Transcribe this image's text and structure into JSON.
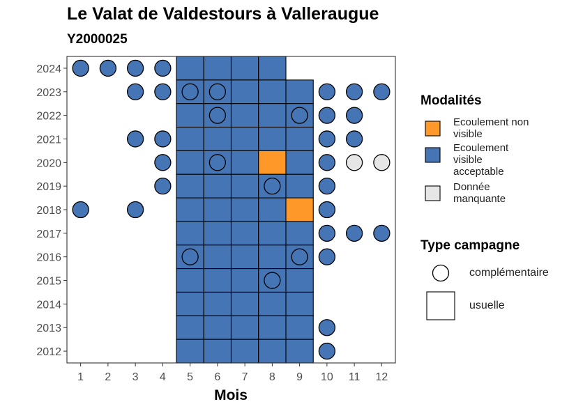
{
  "chart_data": {
    "type": "heatmap",
    "title": "Le Valat de Valdestours à Valleraugue",
    "subtitle": "Y2000025",
    "xlabel": "Mois",
    "ylabel": "",
    "x_ticks": [
      1,
      2,
      3,
      4,
      5,
      6,
      7,
      8,
      9,
      10,
      11,
      12
    ],
    "y_ticks": [
      2012,
      2013,
      2014,
      2015,
      2016,
      2017,
      2018,
      2019,
      2020,
      2021,
      2022,
      2023,
      2024
    ],
    "xlim": [
      0.5,
      12.5
    ],
    "ylim": [
      2011.5,
      2024.5
    ],
    "colors": {
      "Ecoulement non visible": "#FE9929",
      "Ecoulement visible acceptable": "#4575B4",
      "Donnée manquante": "#E6E6E6"
    },
    "legend": {
      "modalites_title": "Modalités",
      "modalites": [
        "Ecoulement non visible",
        "Ecoulement visible acceptable",
        "Donnée manquante"
      ],
      "campagne_title": "Type campagne",
      "campagnes": [
        "complémentaire",
        "usuelle"
      ],
      "placement": "right"
    },
    "points": [
      {
        "year": 2024,
        "month": 1,
        "campagne": "complémentaire",
        "modalite": "Ecoulement visible acceptable"
      },
      {
        "year": 2024,
        "month": 2,
        "campagne": "complémentaire",
        "modalite": "Ecoulement visible acceptable"
      },
      {
        "year": 2024,
        "month": 3,
        "campagne": "complémentaire",
        "modalite": "Ecoulement visible acceptable"
      },
      {
        "year": 2024,
        "month": 4,
        "campagne": "complémentaire",
        "modalite": "Ecoulement visible acceptable"
      },
      {
        "year": 2024,
        "month": 5,
        "campagne": "usuelle",
        "modalite": "Ecoulement visible acceptable"
      },
      {
        "year": 2024,
        "month": 6,
        "campagne": "usuelle",
        "modalite": "Ecoulement visible acceptable"
      },
      {
        "year": 2024,
        "month": 7,
        "campagne": "usuelle",
        "modalite": "Ecoulement visible acceptable"
      },
      {
        "year": 2024,
        "month": 8,
        "campagne": "usuelle",
        "modalite": "Ecoulement visible acceptable"
      },
      {
        "year": 2023,
        "month": 3,
        "campagne": "complémentaire",
        "modalite": "Ecoulement visible acceptable"
      },
      {
        "year": 2023,
        "month": 4,
        "campagne": "complémentaire",
        "modalite": "Ecoulement visible acceptable"
      },
      {
        "year": 2023,
        "month": 5,
        "campagne": "usuelle",
        "modalite": "Ecoulement visible acceptable"
      },
      {
        "year": 2023,
        "month": 5,
        "campagne": "complémentaire",
        "modalite": "Ecoulement visible acceptable"
      },
      {
        "year": 2023,
        "month": 6,
        "campagne": "usuelle",
        "modalite": "Ecoulement visible acceptable"
      },
      {
        "year": 2023,
        "month": 6,
        "campagne": "complémentaire",
        "modalite": "Ecoulement visible acceptable"
      },
      {
        "year": 2023,
        "month": 7,
        "campagne": "usuelle",
        "modalite": "Ecoulement visible acceptable"
      },
      {
        "year": 2023,
        "month": 8,
        "campagne": "usuelle",
        "modalite": "Ecoulement visible acceptable"
      },
      {
        "year": 2023,
        "month": 9,
        "campagne": "usuelle",
        "modalite": "Ecoulement visible acceptable"
      },
      {
        "year": 2023,
        "month": 10,
        "campagne": "complémentaire",
        "modalite": "Ecoulement visible acceptable"
      },
      {
        "year": 2023,
        "month": 11,
        "campagne": "complémentaire",
        "modalite": "Ecoulement visible acceptable"
      },
      {
        "year": 2023,
        "month": 12,
        "campagne": "complémentaire",
        "modalite": "Ecoulement visible acceptable"
      },
      {
        "year": 2022,
        "month": 5,
        "campagne": "usuelle",
        "modalite": "Ecoulement visible acceptable"
      },
      {
        "year": 2022,
        "month": 6,
        "campagne": "usuelle",
        "modalite": "Ecoulement visible acceptable"
      },
      {
        "year": 2022,
        "month": 6,
        "campagne": "complémentaire",
        "modalite": "Ecoulement visible acceptable"
      },
      {
        "year": 2022,
        "month": 7,
        "campagne": "usuelle",
        "modalite": "Ecoulement visible acceptable"
      },
      {
        "year": 2022,
        "month": 8,
        "campagne": "usuelle",
        "modalite": "Ecoulement visible acceptable"
      },
      {
        "year": 2022,
        "month": 9,
        "campagne": "usuelle",
        "modalite": "Ecoulement visible acceptable"
      },
      {
        "year": 2022,
        "month": 9,
        "campagne": "complémentaire",
        "modalite": "Ecoulement visible acceptable"
      },
      {
        "year": 2022,
        "month": 10,
        "campagne": "complémentaire",
        "modalite": "Ecoulement visible acceptable"
      },
      {
        "year": 2022,
        "month": 11,
        "campagne": "complémentaire",
        "modalite": "Ecoulement visible acceptable"
      },
      {
        "year": 2021,
        "month": 3,
        "campagne": "complémentaire",
        "modalite": "Ecoulement visible acceptable"
      },
      {
        "year": 2021,
        "month": 4,
        "campagne": "complémentaire",
        "modalite": "Ecoulement visible acceptable"
      },
      {
        "year": 2021,
        "month": 5,
        "campagne": "usuelle",
        "modalite": "Ecoulement visible acceptable"
      },
      {
        "year": 2021,
        "month": 6,
        "campagne": "usuelle",
        "modalite": "Ecoulement visible acceptable"
      },
      {
        "year": 2021,
        "month": 7,
        "campagne": "usuelle",
        "modalite": "Ecoulement visible acceptable"
      },
      {
        "year": 2021,
        "month": 8,
        "campagne": "usuelle",
        "modalite": "Ecoulement visible acceptable"
      },
      {
        "year": 2021,
        "month": 9,
        "campagne": "usuelle",
        "modalite": "Ecoulement visible acceptable"
      },
      {
        "year": 2021,
        "month": 10,
        "campagne": "complémentaire",
        "modalite": "Ecoulement visible acceptable"
      },
      {
        "year": 2021,
        "month": 11,
        "campagne": "complémentaire",
        "modalite": "Ecoulement visible acceptable"
      },
      {
        "year": 2020,
        "month": 4,
        "campagne": "complémentaire",
        "modalite": "Ecoulement visible acceptable"
      },
      {
        "year": 2020,
        "month": 5,
        "campagne": "usuelle",
        "modalite": "Ecoulement visible acceptable"
      },
      {
        "year": 2020,
        "month": 6,
        "campagne": "usuelle",
        "modalite": "Ecoulement visible acceptable"
      },
      {
        "year": 2020,
        "month": 6,
        "campagne": "complémentaire",
        "modalite": "Ecoulement visible acceptable"
      },
      {
        "year": 2020,
        "month": 7,
        "campagne": "usuelle",
        "modalite": "Ecoulement visible acceptable"
      },
      {
        "year": 2020,
        "month": 8,
        "campagne": "usuelle",
        "modalite": "Ecoulement non visible"
      },
      {
        "year": 2020,
        "month": 9,
        "campagne": "usuelle",
        "modalite": "Ecoulement visible acceptable"
      },
      {
        "year": 2020,
        "month": 10,
        "campagne": "complémentaire",
        "modalite": "Ecoulement visible acceptable"
      },
      {
        "year": 2020,
        "month": 11,
        "campagne": "complémentaire",
        "modalite": "Donnée manquante"
      },
      {
        "year": 2020,
        "month": 12,
        "campagne": "complémentaire",
        "modalite": "Donnée manquante"
      },
      {
        "year": 2019,
        "month": 4,
        "campagne": "complémentaire",
        "modalite": "Ecoulement visible acceptable"
      },
      {
        "year": 2019,
        "month": 5,
        "campagne": "usuelle",
        "modalite": "Ecoulement visible acceptable"
      },
      {
        "year": 2019,
        "month": 6,
        "campagne": "usuelle",
        "modalite": "Ecoulement visible acceptable"
      },
      {
        "year": 2019,
        "month": 7,
        "campagne": "usuelle",
        "modalite": "Ecoulement visible acceptable"
      },
      {
        "year": 2019,
        "month": 8,
        "campagne": "usuelle",
        "modalite": "Ecoulement visible acceptable"
      },
      {
        "year": 2019,
        "month": 8,
        "campagne": "complémentaire",
        "modalite": "Ecoulement visible acceptable"
      },
      {
        "year": 2019,
        "month": 9,
        "campagne": "usuelle",
        "modalite": "Ecoulement visible acceptable"
      },
      {
        "year": 2019,
        "month": 10,
        "campagne": "complémentaire",
        "modalite": "Ecoulement visible acceptable"
      },
      {
        "year": 2018,
        "month": 1,
        "campagne": "complémentaire",
        "modalite": "Ecoulement visible acceptable"
      },
      {
        "year": 2018,
        "month": 3,
        "campagne": "complémentaire",
        "modalite": "Ecoulement visible acceptable"
      },
      {
        "year": 2018,
        "month": 5,
        "campagne": "usuelle",
        "modalite": "Ecoulement visible acceptable"
      },
      {
        "year": 2018,
        "month": 6,
        "campagne": "usuelle",
        "modalite": "Ecoulement visible acceptable"
      },
      {
        "year": 2018,
        "month": 7,
        "campagne": "usuelle",
        "modalite": "Ecoulement visible acceptable"
      },
      {
        "year": 2018,
        "month": 8,
        "campagne": "usuelle",
        "modalite": "Ecoulement visible acceptable"
      },
      {
        "year": 2018,
        "month": 9,
        "campagne": "usuelle",
        "modalite": "Ecoulement non visible"
      },
      {
        "year": 2018,
        "month": 10,
        "campagne": "complémentaire",
        "modalite": "Ecoulement visible acceptable"
      },
      {
        "year": 2017,
        "month": 5,
        "campagne": "usuelle",
        "modalite": "Ecoulement visible acceptable"
      },
      {
        "year": 2017,
        "month": 6,
        "campagne": "usuelle",
        "modalite": "Ecoulement visible acceptable"
      },
      {
        "year": 2017,
        "month": 7,
        "campagne": "usuelle",
        "modalite": "Ecoulement visible acceptable"
      },
      {
        "year": 2017,
        "month": 8,
        "campagne": "usuelle",
        "modalite": "Ecoulement visible acceptable"
      },
      {
        "year": 2017,
        "month": 9,
        "campagne": "usuelle",
        "modalite": "Ecoulement visible acceptable"
      },
      {
        "year": 2017,
        "month": 10,
        "campagne": "complémentaire",
        "modalite": "Ecoulement visible acceptable"
      },
      {
        "year": 2017,
        "month": 11,
        "campagne": "complémentaire",
        "modalite": "Ecoulement visible acceptable"
      },
      {
        "year": 2017,
        "month": 12,
        "campagne": "complémentaire",
        "modalite": "Ecoulement visible acceptable"
      },
      {
        "year": 2016,
        "month": 5,
        "campagne": "usuelle",
        "modalite": "Ecoulement visible acceptable"
      },
      {
        "year": 2016,
        "month": 5,
        "campagne": "complémentaire",
        "modalite": "Ecoulement visible acceptable"
      },
      {
        "year": 2016,
        "month": 6,
        "campagne": "usuelle",
        "modalite": "Ecoulement visible acceptable"
      },
      {
        "year": 2016,
        "month": 7,
        "campagne": "usuelle",
        "modalite": "Ecoulement visible acceptable"
      },
      {
        "year": 2016,
        "month": 8,
        "campagne": "usuelle",
        "modalite": "Ecoulement visible acceptable"
      },
      {
        "year": 2016,
        "month": 9,
        "campagne": "usuelle",
        "modalite": "Ecoulement visible acceptable"
      },
      {
        "year": 2016,
        "month": 9,
        "campagne": "complémentaire",
        "modalite": "Ecoulement visible acceptable"
      },
      {
        "year": 2016,
        "month": 10,
        "campagne": "complémentaire",
        "modalite": "Ecoulement visible acceptable"
      },
      {
        "year": 2015,
        "month": 5,
        "campagne": "usuelle",
        "modalite": "Ecoulement visible acceptable"
      },
      {
        "year": 2015,
        "month": 6,
        "campagne": "usuelle",
        "modalite": "Ecoulement visible acceptable"
      },
      {
        "year": 2015,
        "month": 7,
        "campagne": "usuelle",
        "modalite": "Ecoulement visible acceptable"
      },
      {
        "year": 2015,
        "month": 8,
        "campagne": "usuelle",
        "modalite": "Ecoulement visible acceptable"
      },
      {
        "year": 2015,
        "month": 8,
        "campagne": "complémentaire",
        "modalite": "Ecoulement visible acceptable"
      },
      {
        "year": 2015,
        "month": 9,
        "campagne": "usuelle",
        "modalite": "Ecoulement visible acceptable"
      },
      {
        "year": 2014,
        "month": 5,
        "campagne": "usuelle",
        "modalite": "Ecoulement visible acceptable"
      },
      {
        "year": 2014,
        "month": 6,
        "campagne": "usuelle",
        "modalite": "Ecoulement visible acceptable"
      },
      {
        "year": 2014,
        "month": 7,
        "campagne": "usuelle",
        "modalite": "Ecoulement visible acceptable"
      },
      {
        "year": 2014,
        "month": 8,
        "campagne": "usuelle",
        "modalite": "Ecoulement visible acceptable"
      },
      {
        "year": 2014,
        "month": 9,
        "campagne": "usuelle",
        "modalite": "Ecoulement visible acceptable"
      },
      {
        "year": 2013,
        "month": 5,
        "campagne": "usuelle",
        "modalite": "Ecoulement visible acceptable"
      },
      {
        "year": 2013,
        "month": 6,
        "campagne": "usuelle",
        "modalite": "Ecoulement visible acceptable"
      },
      {
        "year": 2013,
        "month": 7,
        "campagne": "usuelle",
        "modalite": "Ecoulement visible acceptable"
      },
      {
        "year": 2013,
        "month": 8,
        "campagne": "usuelle",
        "modalite": "Ecoulement visible acceptable"
      },
      {
        "year": 2013,
        "month": 9,
        "campagne": "usuelle",
        "modalite": "Ecoulement visible acceptable"
      },
      {
        "year": 2013,
        "month": 10,
        "campagne": "complémentaire",
        "modalite": "Ecoulement visible acceptable"
      },
      {
        "year": 2012,
        "month": 5,
        "campagne": "usuelle",
        "modalite": "Ecoulement visible acceptable"
      },
      {
        "year": 2012,
        "month": 6,
        "campagne": "usuelle",
        "modalite": "Ecoulement visible acceptable"
      },
      {
        "year": 2012,
        "month": 7,
        "campagne": "usuelle",
        "modalite": "Ecoulement visible acceptable"
      },
      {
        "year": 2012,
        "month": 8,
        "campagne": "usuelle",
        "modalite": "Ecoulement visible acceptable"
      },
      {
        "year": 2012,
        "month": 9,
        "campagne": "usuelle",
        "modalite": "Ecoulement visible acceptable"
      },
      {
        "year": 2012,
        "month": 10,
        "campagne": "complémentaire",
        "modalite": "Ecoulement visible acceptable"
      }
    ]
  }
}
